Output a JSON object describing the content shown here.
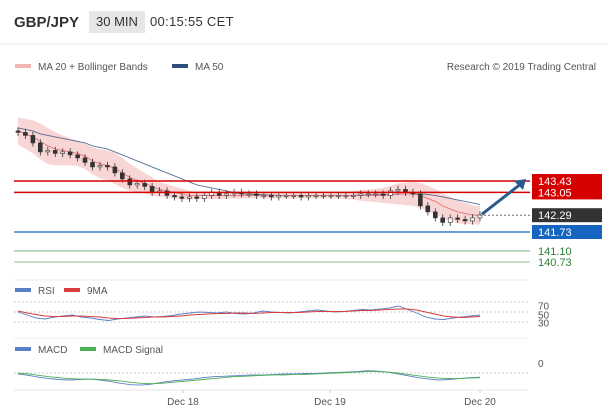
{
  "header": {
    "symbol": "GBP/JPY",
    "interval": "30 MIN",
    "time": "00:15:55 CET"
  },
  "legend": {
    "bollinger_label": "MA 20 + Bollinger Bands",
    "ma50_label": "MA 50",
    "credit": "Research © 2019 Trading Central"
  },
  "colors": {
    "candle": "#333333",
    "bollinger_band": "#f4b5b5",
    "ma20": "#e57373",
    "ma50": "#2c4f7c",
    "resistance": "#d60000",
    "pivot": "#1565c0",
    "support": "#2e7d32",
    "arrow": "#2a5a8c",
    "rsi": "#5b7fc7",
    "rsi_ma": "#d93c3c",
    "macd": "#5b7fc7",
    "macd_signal": "#4caf50"
  },
  "chart_data": [
    {
      "type": "candlestick",
      "title": "GBP/JPY",
      "x_labels": [
        "Dec 18",
        "Dec 19",
        "Dec 20"
      ],
      "close": [
        145.05,
        144.95,
        144.7,
        144.4,
        144.45,
        144.35,
        144.4,
        144.3,
        144.2,
        144.05,
        143.9,
        143.95,
        143.9,
        143.7,
        143.5,
        143.3,
        143.35,
        143.25,
        143.05,
        143.1,
        142.95,
        142.9,
        142.85,
        142.9,
        142.85,
        142.95,
        143.05,
        142.95,
        143.0,
        143.05,
        143.0,
        143.0,
        142.95,
        142.95,
        142.9,
        142.95,
        142.95,
        142.95,
        142.9,
        142.95,
        142.95,
        142.95,
        142.95,
        142.95,
        142.95,
        142.95,
        143.0,
        143.0,
        143.0,
        142.95,
        143.1,
        143.15,
        143.05,
        143.0,
        142.6,
        142.4,
        142.2,
        142.05,
        142.2,
        142.15,
        142.1,
        142.2,
        142.3
      ],
      "ma20": [
        145.1,
        145.0,
        144.9,
        144.75,
        144.6,
        144.5,
        144.45,
        144.4,
        144.35,
        144.25,
        144.1,
        144.0,
        143.95,
        143.85,
        143.7,
        143.55,
        143.45,
        143.35,
        143.25,
        143.15,
        143.1,
        143.05,
        143.0,
        142.95,
        142.95,
        142.95,
        142.95,
        142.95,
        142.95,
        142.95,
        142.95,
        142.95,
        142.95,
        142.95,
        142.95,
        142.95,
        142.95,
        142.95,
        142.95,
        142.95,
        142.95,
        142.95,
        142.95,
        142.95,
        142.95,
        142.95,
        142.95,
        142.95,
        142.95,
        142.95,
        142.97,
        143.0,
        143.0,
        143.0,
        142.95,
        142.85,
        142.75,
        142.6,
        142.5,
        142.4,
        142.35,
        142.3,
        142.28
      ],
      "ma50": [
        145.2,
        145.15,
        145.1,
        145.0,
        144.95,
        144.9,
        144.85,
        144.8,
        144.75,
        144.7,
        144.6,
        144.55,
        144.5,
        144.4,
        144.3,
        144.2,
        144.1,
        144.0,
        143.9,
        143.8,
        143.7,
        143.6,
        143.5,
        143.4,
        143.3,
        143.25,
        143.2,
        143.15,
        143.1,
        143.05,
        143.0,
        143.0,
        142.98,
        142.97,
        142.96,
        142.95,
        142.95,
        142.95,
        142.95,
        142.95,
        142.95,
        142.95,
        142.95,
        142.95,
        142.95,
        142.95,
        142.96,
        142.96,
        142.97,
        142.97,
        142.98,
        142.99,
        143.0,
        143.0,
        143.0,
        142.98,
        142.95,
        142.9,
        142.85,
        142.8,
        142.75,
        142.7,
        142.65
      ],
      "levels": [
        {
          "label": "143.43",
          "value": 143.43,
          "kind": "resistance"
        },
        {
          "label": "143.05",
          "value": 143.05,
          "kind": "resistance"
        },
        {
          "label": "142.29",
          "value": 142.29,
          "kind": "last"
        },
        {
          "label": "141.73",
          "value": 141.73,
          "kind": "pivot"
        },
        {
          "label": "141.10",
          "value": 141.1,
          "kind": "support"
        },
        {
          "label": "140.73",
          "value": 140.73,
          "kind": "support"
        }
      ],
      "forecast_arrow": {
        "from": 142.29,
        "to": 143.43
      },
      "ylim": [
        140.5,
        145.3
      ]
    },
    {
      "type": "line",
      "legend": [
        "RSI",
        "9MA"
      ],
      "y_ticks": [
        "70",
        "50",
        "30"
      ],
      "series": [
        {
          "name": "RSI",
          "values": [
            50,
            44,
            38,
            36,
            40,
            42,
            44,
            40,
            38,
            35,
            33,
            36,
            38,
            40,
            42,
            40,
            41,
            43,
            46,
            48,
            50,
            49,
            48,
            50,
            47,
            46,
            48,
            52,
            50,
            49,
            48,
            50,
            52,
            54,
            52,
            50,
            51,
            53,
            55,
            54,
            56,
            58,
            62,
            55,
            48,
            40,
            36,
            35,
            38,
            40,
            42,
            44
          ]
        },
        {
          "name": "9MA",
          "values": [
            52,
            48,
            45,
            42,
            41,
            41,
            42,
            42,
            41,
            40,
            38,
            37,
            37,
            38,
            39,
            40,
            40,
            41,
            42,
            44,
            45,
            46,
            47,
            47,
            48,
            48,
            47,
            48,
            49,
            49,
            49,
            49,
            50,
            51,
            51,
            51,
            51,
            52,
            53,
            53,
            54,
            55,
            56,
            56,
            54,
            50,
            46,
            42,
            40,
            39,
            40,
            41
          ]
        }
      ],
      "ylim": [
        20,
        80
      ]
    },
    {
      "type": "line",
      "legend": [
        "MACD",
        "MACD Signal"
      ],
      "y_ticks": [
        "0"
      ],
      "series": [
        {
          "name": "MACD",
          "values": [
            -0.02,
            -0.05,
            -0.09,
            -0.12,
            -0.14,
            -0.15,
            -0.14,
            -0.13,
            -0.15,
            -0.18,
            -0.22,
            -0.25,
            -0.26,
            -0.24,
            -0.2,
            -0.17,
            -0.15,
            -0.13,
            -0.1,
            -0.08,
            -0.07,
            -0.06,
            -0.05,
            -0.04,
            -0.04,
            -0.03,
            -0.02,
            -0.02,
            -0.01,
            -0.01,
            0.0,
            0.01,
            0.02,
            0.03,
            0.05,
            0.04,
            0.02,
            -0.02,
            -0.06,
            -0.1,
            -0.13,
            -0.15,
            -0.14,
            -0.12,
            -0.1,
            -0.09
          ]
        },
        {
          "name": "MACD Signal",
          "values": [
            -0.0,
            -0.02,
            -0.05,
            -0.08,
            -0.1,
            -0.12,
            -0.13,
            -0.13,
            -0.14,
            -0.15,
            -0.17,
            -0.2,
            -0.22,
            -0.23,
            -0.22,
            -0.2,
            -0.18,
            -0.16,
            -0.14,
            -0.12,
            -0.1,
            -0.08,
            -0.07,
            -0.06,
            -0.05,
            -0.04,
            -0.04,
            -0.03,
            -0.03,
            -0.02,
            -0.01,
            0.0,
            0.01,
            0.02,
            0.03,
            0.03,
            0.02,
            0.0,
            -0.03,
            -0.06,
            -0.09,
            -0.11,
            -0.12,
            -0.12,
            -0.11,
            -0.1
          ]
        }
      ],
      "ylim": [
        -0.3,
        0.1
      ]
    }
  ]
}
